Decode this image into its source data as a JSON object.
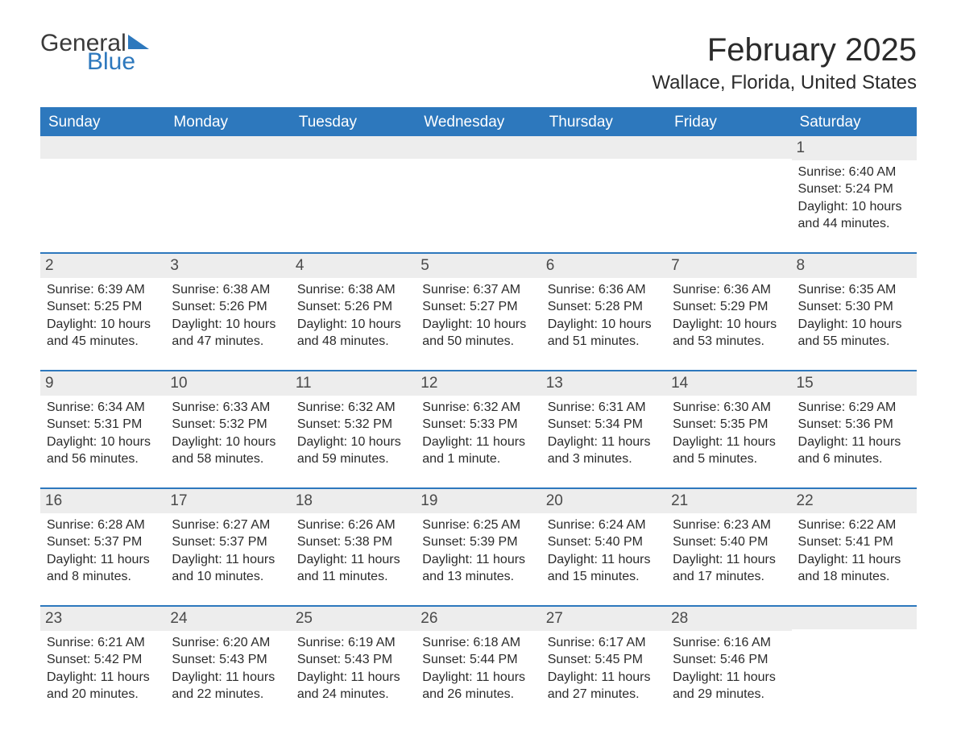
{
  "logo": {
    "text1": "General",
    "text2": "Blue"
  },
  "title": "February 2025",
  "location": "Wallace, Florida, United States",
  "colors": {
    "accent": "#2d78bd",
    "header_text": "#ffffff",
    "daynum_bg": "#ededed",
    "body_text": "#2b2b2b",
    "page_bg": "#ffffff"
  },
  "layout": {
    "columns": 7,
    "rows": 5,
    "title_fontsize": 40,
    "location_fontsize": 24,
    "header_fontsize": 19,
    "body_fontsize": 16
  },
  "weekdays": [
    "Sunday",
    "Monday",
    "Tuesday",
    "Wednesday",
    "Thursday",
    "Friday",
    "Saturday"
  ],
  "weeks": [
    [
      {
        "blank": true
      },
      {
        "blank": true
      },
      {
        "blank": true
      },
      {
        "blank": true
      },
      {
        "blank": true
      },
      {
        "blank": true
      },
      {
        "day": "1",
        "sunrise": "Sunrise: 6:40 AM",
        "sunset": "Sunset: 5:24 PM",
        "daylight": "Daylight: 10 hours and 44 minutes."
      }
    ],
    [
      {
        "day": "2",
        "sunrise": "Sunrise: 6:39 AM",
        "sunset": "Sunset: 5:25 PM",
        "daylight": "Daylight: 10 hours and 45 minutes."
      },
      {
        "day": "3",
        "sunrise": "Sunrise: 6:38 AM",
        "sunset": "Sunset: 5:26 PM",
        "daylight": "Daylight: 10 hours and 47 minutes."
      },
      {
        "day": "4",
        "sunrise": "Sunrise: 6:38 AM",
        "sunset": "Sunset: 5:26 PM",
        "daylight": "Daylight: 10 hours and 48 minutes."
      },
      {
        "day": "5",
        "sunrise": "Sunrise: 6:37 AM",
        "sunset": "Sunset: 5:27 PM",
        "daylight": "Daylight: 10 hours and 50 minutes."
      },
      {
        "day": "6",
        "sunrise": "Sunrise: 6:36 AM",
        "sunset": "Sunset: 5:28 PM",
        "daylight": "Daylight: 10 hours and 51 minutes."
      },
      {
        "day": "7",
        "sunrise": "Sunrise: 6:36 AM",
        "sunset": "Sunset: 5:29 PM",
        "daylight": "Daylight: 10 hours and 53 minutes."
      },
      {
        "day": "8",
        "sunrise": "Sunrise: 6:35 AM",
        "sunset": "Sunset: 5:30 PM",
        "daylight": "Daylight: 10 hours and 55 minutes."
      }
    ],
    [
      {
        "day": "9",
        "sunrise": "Sunrise: 6:34 AM",
        "sunset": "Sunset: 5:31 PM",
        "daylight": "Daylight: 10 hours and 56 minutes."
      },
      {
        "day": "10",
        "sunrise": "Sunrise: 6:33 AM",
        "sunset": "Sunset: 5:32 PM",
        "daylight": "Daylight: 10 hours and 58 minutes."
      },
      {
        "day": "11",
        "sunrise": "Sunrise: 6:32 AM",
        "sunset": "Sunset: 5:32 PM",
        "daylight": "Daylight: 10 hours and 59 minutes."
      },
      {
        "day": "12",
        "sunrise": "Sunrise: 6:32 AM",
        "sunset": "Sunset: 5:33 PM",
        "daylight": "Daylight: 11 hours and 1 minute."
      },
      {
        "day": "13",
        "sunrise": "Sunrise: 6:31 AM",
        "sunset": "Sunset: 5:34 PM",
        "daylight": "Daylight: 11 hours and 3 minutes."
      },
      {
        "day": "14",
        "sunrise": "Sunrise: 6:30 AM",
        "sunset": "Sunset: 5:35 PM",
        "daylight": "Daylight: 11 hours and 5 minutes."
      },
      {
        "day": "15",
        "sunrise": "Sunrise: 6:29 AM",
        "sunset": "Sunset: 5:36 PM",
        "daylight": "Daylight: 11 hours and 6 minutes."
      }
    ],
    [
      {
        "day": "16",
        "sunrise": "Sunrise: 6:28 AM",
        "sunset": "Sunset: 5:37 PM",
        "daylight": "Daylight: 11 hours and 8 minutes."
      },
      {
        "day": "17",
        "sunrise": "Sunrise: 6:27 AM",
        "sunset": "Sunset: 5:37 PM",
        "daylight": "Daylight: 11 hours and 10 minutes."
      },
      {
        "day": "18",
        "sunrise": "Sunrise: 6:26 AM",
        "sunset": "Sunset: 5:38 PM",
        "daylight": "Daylight: 11 hours and 11 minutes."
      },
      {
        "day": "19",
        "sunrise": "Sunrise: 6:25 AM",
        "sunset": "Sunset: 5:39 PM",
        "daylight": "Daylight: 11 hours and 13 minutes."
      },
      {
        "day": "20",
        "sunrise": "Sunrise: 6:24 AM",
        "sunset": "Sunset: 5:40 PM",
        "daylight": "Daylight: 11 hours and 15 minutes."
      },
      {
        "day": "21",
        "sunrise": "Sunrise: 6:23 AM",
        "sunset": "Sunset: 5:40 PM",
        "daylight": "Daylight: 11 hours and 17 minutes."
      },
      {
        "day": "22",
        "sunrise": "Sunrise: 6:22 AM",
        "sunset": "Sunset: 5:41 PM",
        "daylight": "Daylight: 11 hours and 18 minutes."
      }
    ],
    [
      {
        "day": "23",
        "sunrise": "Sunrise: 6:21 AM",
        "sunset": "Sunset: 5:42 PM",
        "daylight": "Daylight: 11 hours and 20 minutes."
      },
      {
        "day": "24",
        "sunrise": "Sunrise: 6:20 AM",
        "sunset": "Sunset: 5:43 PM",
        "daylight": "Daylight: 11 hours and 22 minutes."
      },
      {
        "day": "25",
        "sunrise": "Sunrise: 6:19 AM",
        "sunset": "Sunset: 5:43 PM",
        "daylight": "Daylight: 11 hours and 24 minutes."
      },
      {
        "day": "26",
        "sunrise": "Sunrise: 6:18 AM",
        "sunset": "Sunset: 5:44 PM",
        "daylight": "Daylight: 11 hours and 26 minutes."
      },
      {
        "day": "27",
        "sunrise": "Sunrise: 6:17 AM",
        "sunset": "Sunset: 5:45 PM",
        "daylight": "Daylight: 11 hours and 27 minutes."
      },
      {
        "day": "28",
        "sunrise": "Sunrise: 6:16 AM",
        "sunset": "Sunset: 5:46 PM",
        "daylight": "Daylight: 11 hours and 29 minutes."
      },
      {
        "blank": true
      }
    ]
  ]
}
